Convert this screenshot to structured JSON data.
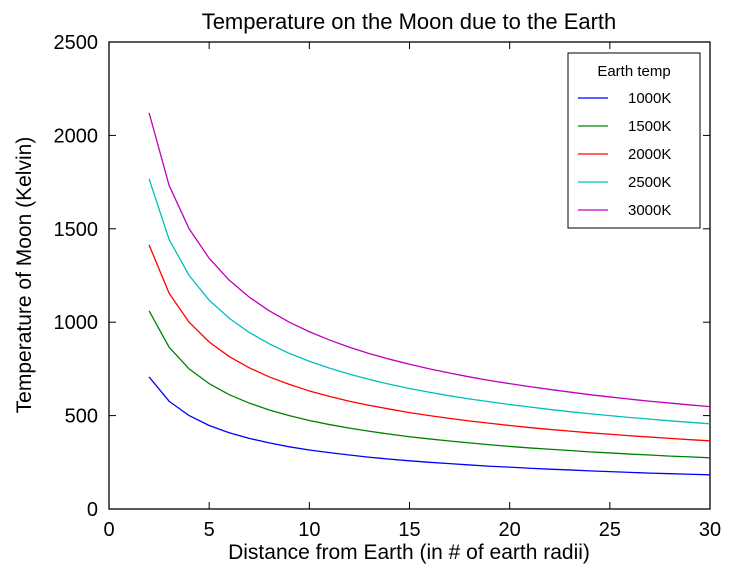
{
  "chart_data": {
    "type": "line",
    "title": "Temperature on the Moon due to the Earth",
    "xlabel": "Distance from Earth (in # of earth radii)",
    "ylabel": "Temperature of Moon (Kelvin)",
    "xlim": [
      0,
      30
    ],
    "ylim": [
      0,
      2500
    ],
    "xticks": [
      0,
      5,
      10,
      15,
      20,
      25,
      30
    ],
    "yticks": [
      0,
      500,
      1000,
      1500,
      2000,
      2500
    ],
    "grid": false,
    "legend": {
      "title": "Earth temp",
      "placement": "top-right"
    },
    "x": [
      2,
      3,
      4,
      5,
      6,
      7,
      8,
      9,
      10,
      11,
      12,
      13,
      14,
      15,
      16,
      17,
      18,
      19,
      20,
      21,
      22,
      23,
      24,
      25,
      26,
      27,
      28,
      29,
      30
    ],
    "series": [
      {
        "name": "1000K",
        "color": "#0000ff",
        "values": [
          707,
          577,
          500,
          447,
          408,
          378,
          354,
          333,
          316,
          302,
          289,
          277,
          267,
          258,
          250,
          243,
          236,
          229,
          224,
          218,
          213,
          209,
          204,
          200,
          196,
          192,
          189,
          186,
          183
        ]
      },
      {
        "name": "1500K",
        "color": "#008000",
        "values": [
          1061,
          866,
          750,
          671,
          612,
          567,
          530,
          500,
          474,
          452,
          433,
          416,
          401,
          387,
          375,
          364,
          354,
          344,
          335,
          327,
          320,
          313,
          306,
          300,
          294,
          289,
          283,
          279,
          274
        ]
      },
      {
        "name": "2000K",
        "color": "#ff0000",
        "values": [
          1414,
          1155,
          1000,
          894,
          816,
          756,
          707,
          667,
          632,
          603,
          577,
          555,
          535,
          516,
          500,
          485,
          471,
          459,
          447,
          436,
          426,
          417,
          408,
          400,
          392,
          385,
          378,
          371,
          365
        ]
      },
      {
        "name": "2500K",
        "color": "#00bfbf",
        "values": [
          1768,
          1443,
          1250,
          1118,
          1021,
          945,
          884,
          833,
          791,
          754,
          722,
          693,
          668,
          645,
          625,
          606,
          589,
          574,
          559,
          546,
          533,
          521,
          510,
          500,
          490,
          481,
          472,
          464,
          456
        ]
      },
      {
        "name": "3000K",
        "color": "#bf00bf",
        "values": [
          2121,
          1732,
          1500,
          1342,
          1225,
          1134,
          1061,
          1000,
          949,
          905,
          866,
          832,
          802,
          775,
          750,
          728,
          707,
          688,
          671,
          655,
          640,
          626,
          612,
          600,
          588,
          577,
          567,
          557,
          548
        ]
      }
    ]
  }
}
